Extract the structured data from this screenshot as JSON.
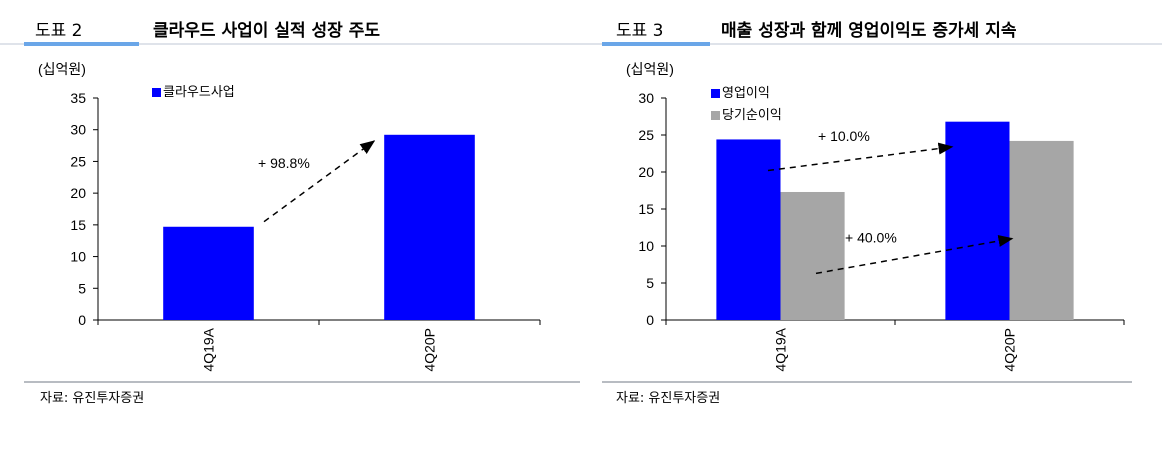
{
  "left": {
    "fig_label": "도표 2",
    "title": "클라우드 사업이 실적 성장 주도",
    "source": "자료: 유진투자증권"
  },
  "right": {
    "fig_label": "도표 3",
    "title": "매출 성장과 함께 영업이익도 증가세 지속",
    "source": "자료: 유진투자증권"
  },
  "colors": {
    "blue": "#0000ff",
    "gray": "#a6a6a6",
    "accent": "#6aa6e8"
  },
  "chart_data": [
    {
      "type": "bar",
      "unit_label": "(십억원)",
      "categories": [
        "4Q19A",
        "4Q20P"
      ],
      "series": [
        {
          "name": "클라우드사업",
          "values": [
            14.7,
            29.2
          ]
        }
      ],
      "ylim": [
        0,
        35
      ],
      "yticks": [
        0,
        5,
        10,
        15,
        20,
        25,
        30,
        35
      ],
      "annotations": [
        "+ 98.8%"
      ],
      "legend": "top-left",
      "grid": false
    },
    {
      "type": "bar",
      "unit_label": "(십억원)",
      "categories": [
        "4Q19A",
        "4Q20P"
      ],
      "series": [
        {
          "name": "영업이익",
          "values": [
            24.4,
            26.8
          ]
        },
        {
          "name": "당기순이익",
          "values": [
            17.3,
            24.2
          ]
        }
      ],
      "ylim": [
        0,
        30
      ],
      "yticks": [
        0,
        5,
        10,
        15,
        20,
        25,
        30
      ],
      "annotations": [
        "+ 10.0%",
        "+ 40.0%"
      ],
      "legend": "top-left",
      "grid": false
    }
  ]
}
